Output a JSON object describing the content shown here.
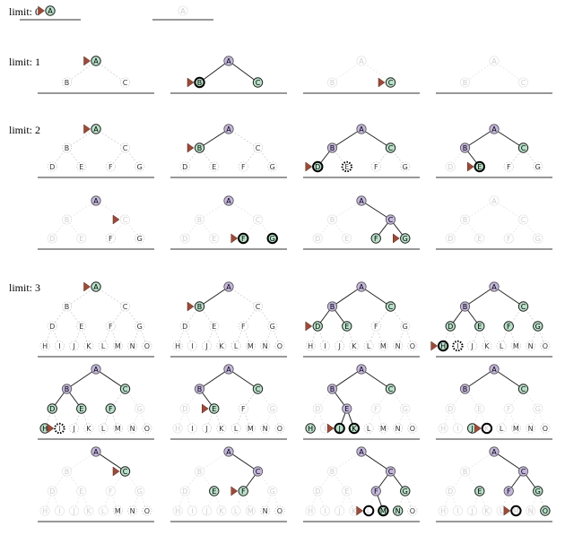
{
  "labels": [
    "A",
    "B",
    "C",
    "D",
    "E",
    "F",
    "G",
    "H",
    "I",
    "J",
    "K",
    "L",
    "M",
    "N",
    "O"
  ],
  "limit_prefix": "limit: ",
  "limit_groups": [
    {
      "limit": 0,
      "text": "limit: 0"
    },
    {
      "limit": 1,
      "text": "limit: 1"
    },
    {
      "limit": 2,
      "text": "limit: 2"
    },
    {
      "limit": 3,
      "text": "limit: 3"
    }
  ],
  "node_states": {
    "a": "active (purple, on current path)",
    "g": "frontier (green, queued)",
    "f": "faded (already expanded / pruned)",
    "n": "unvisited (white outline, dashed edges)"
  },
  "colors": {
    "path": "#c4b6dd",
    "frontier": "#b9e1c9",
    "pointer": "#9b4b38",
    "unvisited_stroke": "#bfbfbf",
    "faded": "#e2e2e2",
    "baseline": "#777777"
  },
  "panels": [
    {
      "limit": 0,
      "row": 0,
      "col": 0,
      "states": "g",
      "current": 0,
      "ring": []
    },
    {
      "limit": 0,
      "row": 0,
      "col": 1,
      "states": "f",
      "current": -1,
      "ring": []
    },
    {
      "limit": 1,
      "row": 0,
      "col": 0,
      "states": "gnn",
      "current": 0,
      "ring": []
    },
    {
      "limit": 1,
      "row": 0,
      "col": 1,
      "states": "agg",
      "current": 1,
      "ring": [
        1
      ]
    },
    {
      "limit": 1,
      "row": 0,
      "col": 2,
      "states": "ffg",
      "current": 2,
      "ring": []
    },
    {
      "limit": 1,
      "row": 0,
      "col": 3,
      "states": "fff",
      "current": -1,
      "ring": []
    },
    {
      "limit": 2,
      "row": 0,
      "col": 0,
      "states": "gnnnnnn",
      "current": 0,
      "ring": []
    },
    {
      "limit": 2,
      "row": 0,
      "col": 1,
      "states": "agnnnnn",
      "current": 1,
      "ring": []
    },
    {
      "limit": 2,
      "row": 0,
      "col": 2,
      "states": "aaggnnn",
      "current": 3,
      "ring": [
        3,
        4
      ]
    },
    {
      "limit": 2,
      "row": 0,
      "col": 3,
      "states": "aagfgnn",
      "current": 4,
      "ring": [
        4
      ]
    },
    {
      "limit": 2,
      "row": 1,
      "col": 0,
      "states": "affffnn",
      "current": 2,
      "ring": []
    },
    {
      "limit": 2,
      "row": 1,
      "col": 1,
      "states": "affffgg",
      "current": 5,
      "ring": [
        5,
        6
      ]
    },
    {
      "limit": 2,
      "row": 1,
      "col": 2,
      "states": "afaffgg",
      "current": 6,
      "ring": []
    },
    {
      "limit": 2,
      "row": 1,
      "col": 3,
      "states": "fffffff",
      "current": -1,
      "ring": []
    },
    {
      "limit": 3,
      "row": 0,
      "col": 0,
      "states": "gnnnnnnnnnnnnnn",
      "current": 0,
      "ring": []
    },
    {
      "limit": 3,
      "row": 0,
      "col": 1,
      "states": "agnnnnnnnnnnnnn",
      "current": 1,
      "ring": []
    },
    {
      "limit": 3,
      "row": 0,
      "col": 2,
      "states": "aagggnnnnnnnnnn",
      "current": 3,
      "ring": []
    },
    {
      "limit": 3,
      "row": 0,
      "col": 3,
      "states": "aaggggggnnnnnnn",
      "current": 7,
      "ring": [
        7,
        8
      ]
    },
    {
      "limit": 3,
      "row": 1,
      "col": 0,
      "states": "aaggggfgnnnnnnn",
      "current": 8,
      "ring": [
        8
      ]
    },
    {
      "limit": 3,
      "row": 1,
      "col": 1,
      "states": "aagfgnffnnnnnnn",
      "current": 4,
      "ring": []
    },
    {
      "limit": 3,
      "row": 1,
      "col": 2,
      "states": "aagfaffgfggnnnn",
      "current": 9,
      "ring": [
        9,
        10
      ]
    },
    {
      "limit": 3,
      "row": 1,
      "col": 3,
      "states": "aagffffffgfnnnn",
      "current": 10,
      "ring": [
        10
      ]
    },
    {
      "limit": 3,
      "row": 2,
      "col": 0,
      "states": "afgfffffffffnnn",
      "current": 2,
      "ring": []
    },
    {
      "limit": 3,
      "row": 2,
      "col": 1,
      "states": "afafggfffffffnn",
      "current": 5,
      "ring": []
    },
    {
      "limit": 3,
      "row": 2,
      "col": 2,
      "states": "afaffagfffffggn",
      "current": 11,
      "ring": [
        11,
        12
      ]
    },
    {
      "limit": 3,
      "row": 2,
      "col": 3,
      "states": "afafgagfffffffg",
      "current": 12,
      "ring": [
        12
      ]
    }
  ]
}
